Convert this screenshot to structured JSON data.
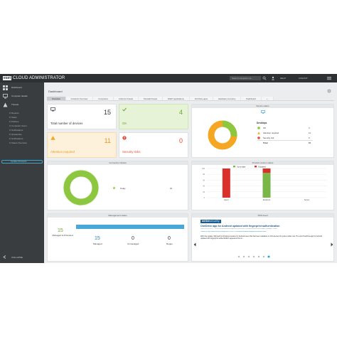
{
  "topbar": {
    "logo_box": "eset",
    "title": "CLOUD ADMINISTRATOR",
    "search_placeholder": "Search computer na...",
    "help_label": "HELP",
    "logout_label": "LOGOUT"
  },
  "sidebar": {
    "items": [
      {
        "label": "Dashboard"
      },
      {
        "label": "Computer details"
      },
      {
        "label": "Threats"
      },
      {
        "label": "Reports"
      },
      {
        "label": "Tasks"
      },
      {
        "label": "Policies"
      },
      {
        "label": "Computer Users"
      },
      {
        "label": "Notifications"
      },
      {
        "label": "Quarantine"
      },
      {
        "label": "Notifications"
      },
      {
        "label": "Status Overview"
      }
    ],
    "active_item": "Update Products",
    "collapse_label": "COLLAPSE"
  },
  "main": {
    "breadcrumb": "Dashboard",
    "tabs": [
      "Overview",
      "Incidents Overview",
      "Computers",
      "Antivirus threats",
      "Firewall threats",
      "ESET applications",
      "3rd Party apps",
      "Hardware inventory",
      "Dashboard"
    ],
    "tab_add": "+",
    "tiles": {
      "total_label": "Total number of devices",
      "total_value": "15",
      "ok_label": "OK",
      "ok_value": "4",
      "attention_label": "Attention required",
      "attention_value": "11",
      "risk_label": "Security risks",
      "risk_value": "0"
    },
    "device_status": {
      "title": "Device status",
      "legend_title": "Desktops",
      "rows": [
        {
          "label": "OK",
          "value": "4"
        },
        {
          "label": "Attention required",
          "value": "11"
        },
        {
          "label": "Security risk",
          "value": "0"
        },
        {
          "label": "Total",
          "value": "15"
        }
      ]
    },
    "connection_status": {
      "title": "Connection Status",
      "legend": [
        {
          "label": "Today",
          "value": "15"
        }
      ]
    },
    "product_version": {
      "title": "Product version status",
      "legend": [
        "Up-to-date",
        "Outdated"
      ],
      "categories": [
        "Agent",
        "Endpoint",
        "Server"
      ],
      "y_ticks": [
        "100",
        "80",
        "60",
        "40",
        "20",
        "0"
      ]
    },
    "management_status": {
      "title": "Management status",
      "managed_protected_value": "15",
      "managed_protected_label": "Managed & Protected",
      "items": [
        {
          "value": "15",
          "label": "Managed"
        },
        {
          "value": "0",
          "label": "Unmanaged"
        },
        {
          "value": "0",
          "label": "Rogue"
        }
      ]
    },
    "rss": {
      "title": "RSS Feed",
      "brand_a": "welive",
      "brand_b": "security",
      "headline": "OneDrive app for Android updated with fingerprint authentication",
      "meta": "THU JUL 21 2016 — 8:54 PM by welivesecurity.com (GMT EDITION, EASTERN EUROPEAN SUMMER TIME)",
      "link": "Posted in http://www.welivesecurity.com/2016/07/21/onedrive-android-fingerprint-authentication/",
      "body": "With this update, Microsoft is bringing a feature for Android users that has been available on iOS devices for quite a while now. The post OneDrive app for Android updated with fingerprint authentication appeared first on..."
    }
  },
  "colors": {
    "ok_green": "#8dc63f",
    "attention_orange": "#f5a623",
    "risk_red": "#e64a3b",
    "bar_red": "#d9302c",
    "bar_green": "#7ab648",
    "accent_blue": "#2a9fd6"
  },
  "chart_data": [
    {
      "type": "pie",
      "title": "Device status",
      "categories": [
        "OK",
        "Attention required",
        "Security risk"
      ],
      "values": [
        4,
        11,
        0
      ]
    },
    {
      "type": "pie",
      "title": "Connection Status",
      "categories": [
        "Today"
      ],
      "values": [
        15
      ]
    },
    {
      "type": "bar",
      "title": "Product version status",
      "categories": [
        "Agent",
        "Endpoint",
        "Server"
      ],
      "series": [
        {
          "name": "Up-to-date",
          "values": [
            0,
            85,
            0
          ]
        },
        {
          "name": "Outdated",
          "values": [
            100,
            15,
            0
          ]
        }
      ],
      "ylim": [
        0,
        100
      ]
    }
  ]
}
